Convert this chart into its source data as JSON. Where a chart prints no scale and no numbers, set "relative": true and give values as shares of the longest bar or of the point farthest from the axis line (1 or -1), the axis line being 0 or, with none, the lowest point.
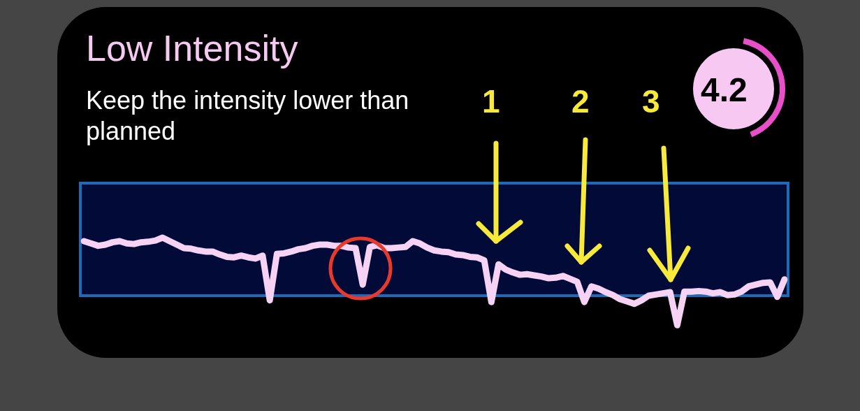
{
  "chart_data": {
    "type": "line",
    "relative": true,
    "title": "Low Intensity",
    "subtitle": "Keep the intensity lower than planned",
    "categories": [
      null,
      null,
      null,
      null,
      null,
      null,
      null,
      null,
      null,
      null,
      null,
      null,
      null,
      null,
      null,
      null,
      null,
      null,
      null,
      null,
      null,
      null,
      null,
      null,
      null,
      null,
      null,
      null,
      null,
      null,
      null,
      null,
      null,
      null,
      null,
      null,
      null,
      null,
      null,
      null,
      null,
      null,
      null,
      null,
      null,
      null,
      null,
      null,
      null,
      null,
      null,
      null,
      null,
      null,
      null,
      null,
      null,
      null,
      null,
      null,
      null,
      null,
      null,
      null,
      null,
      null,
      null,
      null,
      null,
      null,
      null,
      null,
      null,
      null,
      null,
      null,
      null,
      null,
      null,
      null,
      null,
      null,
      null,
      null,
      null,
      null,
      null,
      null,
      null,
      null,
      null,
      null,
      null,
      null,
      null,
      null,
      null,
      null,
      null
    ],
    "series": [
      {
        "color": "#f6d2f4",
        "values": [
          0.94,
          0.9,
          0.86,
          0.88,
          0.92,
          0.94,
          0.9,
          0.89,
          0.92,
          0.93,
          0.95,
          1,
          0.94,
          0.88,
          0.82,
          0.81,
          0.78,
          0.76,
          0.76,
          0.71,
          0.67,
          0.66,
          0.69,
          0.66,
          0.64,
          0.69,
          -0.08,
          0.72,
          0.73,
          0.76,
          0.8,
          0.82,
          0.86,
          0.88,
          0.88,
          0.86,
          0.86,
          0.83,
          0.82,
          0.19,
          0.84,
          0.87,
          0.82,
          0.82,
          0.83,
          0.84,
          0.94,
          0.9,
          0.83,
          0.78,
          0.76,
          0.75,
          0.71,
          0.7,
          0.67,
          0.66,
          0.61,
          -0.11,
          0.54,
          0.45,
          0.4,
          0.36,
          0.37,
          0.35,
          0.33,
          0.3,
          0.31,
          0.34,
          0.29,
          0.24,
          -0.11,
          0.16,
          0.12,
          0.06,
          0.01,
          -0.06,
          -0.1,
          -0.14,
          -0.08,
          0,
          0.02,
          0.04,
          0.06,
          -0.51,
          0.07,
          0.07,
          0.08,
          0.07,
          0.04,
          0.06,
          0.01,
          0.02,
          0.07,
          0.16,
          0.19,
          0.22,
          0.23,
          -0.02,
          0.28
        ]
      }
    ],
    "marker": "none",
    "annotations": [
      "1",
      "2",
      "3",
      "4.2"
    ]
  }
}
